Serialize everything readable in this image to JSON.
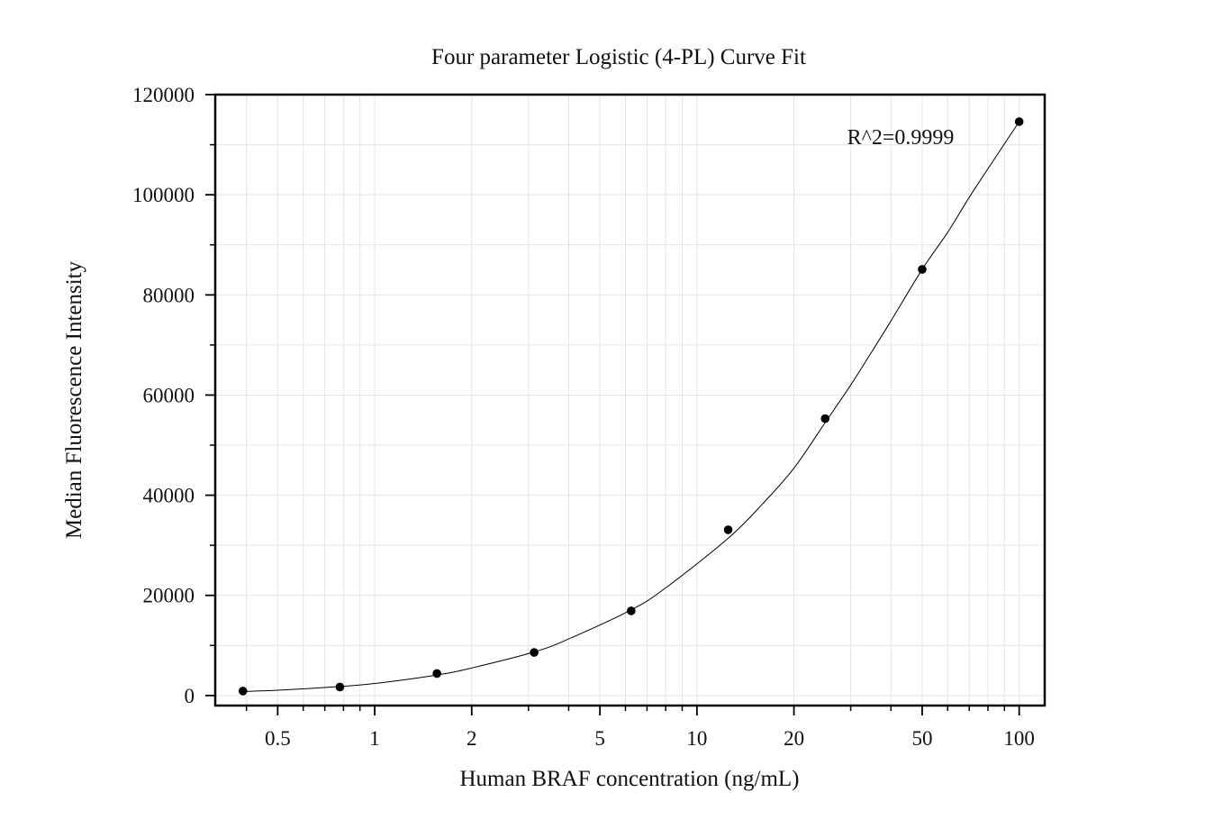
{
  "chart_data": {
    "type": "scatter",
    "title": "Four parameter Logistic (4-PL) Curve Fit",
    "xlabel": "Human BRAF concentration (ng/mL)",
    "ylabel": "Median Fluorescence Intensity",
    "x_scale": "log",
    "xlim": [
      0.32,
      120
    ],
    "ylim": [
      -2000,
      120000
    ],
    "x_ticks": [
      0.5,
      1,
      2,
      5,
      10,
      20,
      50,
      100
    ],
    "x_tick_labels": [
      "0.5",
      "1",
      "2",
      "5",
      "10",
      "20",
      "50",
      "100"
    ],
    "y_ticks": [
      0,
      20000,
      40000,
      60000,
      80000,
      100000,
      120000
    ],
    "y_tick_labels": [
      "0",
      "20000",
      "40000",
      "60000",
      "80000",
      "100000",
      "120000"
    ],
    "grid": true,
    "annotation": "R^2=0.9999",
    "points": {
      "x": [
        0.39,
        0.78,
        1.56,
        3.125,
        6.25,
        12.5,
        25,
        50,
        100
      ],
      "y": [
        900,
        1700,
        4400,
        8600,
        16900,
        33100,
        55300,
        85100,
        114600
      ]
    },
    "fit_curve": {
      "model": "4-PL",
      "x": [
        0.39,
        0.5,
        0.78,
        1.0,
        1.56,
        2.0,
        3.125,
        4.0,
        6.25,
        8.0,
        12.5,
        16.0,
        20.0,
        25.0,
        30.0,
        35.0,
        40.0,
        50.0,
        60.0,
        70.0,
        80.0,
        100.0
      ],
      "y": [
        800,
        1050,
        1800,
        2400,
        4100,
        5500,
        8700,
        11300,
        17100,
        21500,
        31400,
        38300,
        45400,
        54500,
        62000,
        68800,
        74800,
        85100,
        92500,
        99500,
        105200,
        114600
      ]
    },
    "colors": {
      "points": "#000000",
      "curve": "#000000",
      "grid": "#e4e4e4",
      "axis": "#000000"
    }
  }
}
